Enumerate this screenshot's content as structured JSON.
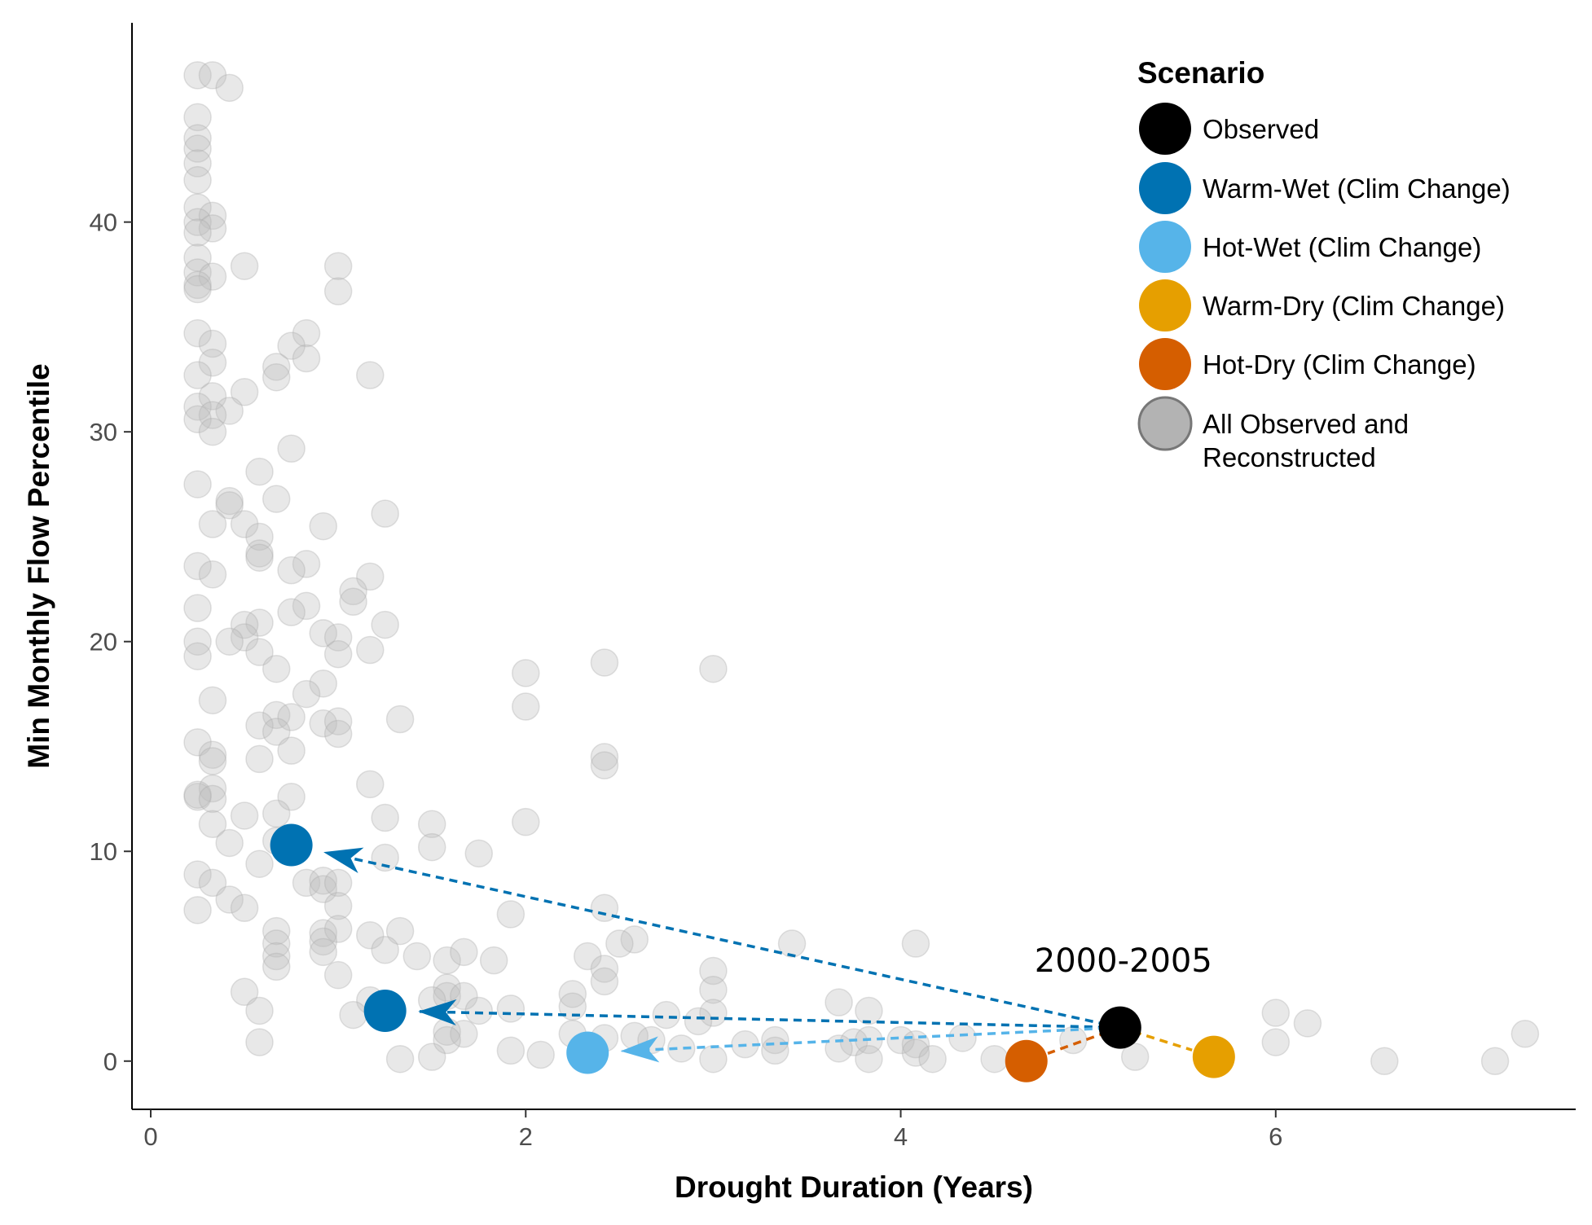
{
  "chart_data": {
    "type": "scatter",
    "xlabel": "Drought Duration (Years)",
    "ylabel": "Min Monthly Flow Percentile",
    "xlim": [
      -0.1,
      7.6
    ],
    "ylim": [
      -2.3,
      49.5
    ],
    "xticks": [
      0,
      2,
      4,
      6
    ],
    "yticks": [
      0,
      10,
      20,
      30,
      40
    ],
    "grid": false,
    "legend_position": "top-right",
    "legend_title": "Scenario",
    "colors": {
      "Observed": "#000000",
      "Warm-Wet (Clim Change)": "#0072B2",
      "Hot-Wet (Clim Change)": "#56B4E9",
      "Warm-Dry (Clim Change)": "#E69F00",
      "Hot-Dry (Clim Change)": "#D55E00",
      "All Observed and Reconstructed": "#bdbdbd"
    },
    "series": [
      {
        "name": "All Observed and Reconstructed",
        "points": [
          [
            0.25,
            47.0
          ],
          [
            0.33,
            47.0
          ],
          [
            0.42,
            46.4
          ],
          [
            0.25,
            45.0
          ],
          [
            0.25,
            44.0
          ],
          [
            0.25,
            43.5
          ],
          [
            0.25,
            42.8
          ],
          [
            0.25,
            42.0
          ],
          [
            0.25,
            40.7
          ],
          [
            0.33,
            40.3
          ],
          [
            0.25,
            40.0
          ],
          [
            0.33,
            39.7
          ],
          [
            0.25,
            39.5
          ],
          [
            0.25,
            38.3
          ],
          [
            0.5,
            37.9
          ],
          [
            0.25,
            37.6
          ],
          [
            0.33,
            37.4
          ],
          [
            0.25,
            37.0
          ],
          [
            0.25,
            36.8
          ],
          [
            1.0,
            37.9
          ],
          [
            1.0,
            36.7
          ],
          [
            0.25,
            34.7
          ],
          [
            0.33,
            34.2
          ],
          [
            0.83,
            34.7
          ],
          [
            0.75,
            34.1
          ],
          [
            0.33,
            33.3
          ],
          [
            0.83,
            33.5
          ],
          [
            0.67,
            33.1
          ],
          [
            0.67,
            32.6
          ],
          [
            0.25,
            32.7
          ],
          [
            1.17,
            32.7
          ],
          [
            0.5,
            31.9
          ],
          [
            0.33,
            31.7
          ],
          [
            0.25,
            31.2
          ],
          [
            0.42,
            31.0
          ],
          [
            0.33,
            30.8
          ],
          [
            0.25,
            30.6
          ],
          [
            0.33,
            30.0
          ],
          [
            0.75,
            29.2
          ],
          [
            0.58,
            28.1
          ],
          [
            0.25,
            27.5
          ],
          [
            0.67,
            26.8
          ],
          [
            0.42,
            26.7
          ],
          [
            0.42,
            26.5
          ],
          [
            1.25,
            26.1
          ],
          [
            0.33,
            25.6
          ],
          [
            0.5,
            25.6
          ],
          [
            0.92,
            25.5
          ],
          [
            0.58,
            25.0
          ],
          [
            0.58,
            24.2
          ],
          [
            0.58,
            24.0
          ],
          [
            0.83,
            23.7
          ],
          [
            0.25,
            23.6
          ],
          [
            0.75,
            23.4
          ],
          [
            0.33,
            23.2
          ],
          [
            1.17,
            23.1
          ],
          [
            1.08,
            22.4
          ],
          [
            1.08,
            21.9
          ],
          [
            0.83,
            21.7
          ],
          [
            0.25,
            21.6
          ],
          [
            0.75,
            21.4
          ],
          [
            0.58,
            20.9
          ],
          [
            0.5,
            20.8
          ],
          [
            1.25,
            20.8
          ],
          [
            0.92,
            20.4
          ],
          [
            0.5,
            20.2
          ],
          [
            1.0,
            20.2
          ],
          [
            0.25,
            20.0
          ],
          [
            0.42,
            20.0
          ],
          [
            0.25,
            19.3
          ],
          [
            1.0,
            19.4
          ],
          [
            1.17,
            19.6
          ],
          [
            0.58,
            19.5
          ],
          [
            0.67,
            18.7
          ],
          [
            2.0,
            18.5
          ],
          [
            2.42,
            19.0
          ],
          [
            3.0,
            18.7
          ],
          [
            0.92,
            18.0
          ],
          [
            0.83,
            17.5
          ],
          [
            0.33,
            17.2
          ],
          [
            2.0,
            16.9
          ],
          [
            0.67,
            16.5
          ],
          [
            0.75,
            16.4
          ],
          [
            1.33,
            16.3
          ],
          [
            0.58,
            16.0
          ],
          [
            0.92,
            16.1
          ],
          [
            1.0,
            16.2
          ],
          [
            0.67,
            15.7
          ],
          [
            1.0,
            15.6
          ],
          [
            0.25,
            15.2
          ],
          [
            0.75,
            14.8
          ],
          [
            0.33,
            14.6
          ],
          [
            0.33,
            14.3
          ],
          [
            0.58,
            14.4
          ],
          [
            2.42,
            14.5
          ],
          [
            2.42,
            14.1
          ],
          [
            1.17,
            13.2
          ],
          [
            0.33,
            13.0
          ],
          [
            0.25,
            12.6
          ],
          [
            0.25,
            12.7
          ],
          [
            0.33,
            12.5
          ],
          [
            0.75,
            12.6
          ],
          [
            0.5,
            11.7
          ],
          [
            0.67,
            11.8
          ],
          [
            1.25,
            11.6
          ],
          [
            0.33,
            11.3
          ],
          [
            1.5,
            11.3
          ],
          [
            2.0,
            11.4
          ],
          [
            0.42,
            10.4
          ],
          [
            0.67,
            10.5
          ],
          [
            1.5,
            10.2
          ],
          [
            1.75,
            9.9
          ],
          [
            0.58,
            9.4
          ],
          [
            1.25,
            9.7
          ],
          [
            0.25,
            8.9
          ],
          [
            0.33,
            8.5
          ],
          [
            0.83,
            8.5
          ],
          [
            0.92,
            8.6
          ],
          [
            0.92,
            8.2
          ],
          [
            1.0,
            8.5
          ],
          [
            0.42,
            7.7
          ],
          [
            0.5,
            7.3
          ],
          [
            0.25,
            7.2
          ],
          [
            1.0,
            7.4
          ],
          [
            1.92,
            7.0
          ],
          [
            2.42,
            7.3
          ],
          [
            0.67,
            6.2
          ],
          [
            0.92,
            6.1
          ],
          [
            1.0,
            6.3
          ],
          [
            1.17,
            6.0
          ],
          [
            1.33,
            6.2
          ],
          [
            0.67,
            5.6
          ],
          [
            0.92,
            5.7
          ],
          [
            1.25,
            5.3
          ],
          [
            2.58,
            5.8
          ],
          [
            2.5,
            5.6
          ],
          [
            3.42,
            5.6
          ],
          [
            4.08,
            5.6
          ],
          [
            0.67,
            5.0
          ],
          [
            0.92,
            5.2
          ],
          [
            1.42,
            5.0
          ],
          [
            1.58,
            4.8
          ],
          [
            1.67,
            5.2
          ],
          [
            1.83,
            4.8
          ],
          [
            2.33,
            5.0
          ],
          [
            0.67,
            4.5
          ],
          [
            1.0,
            4.1
          ],
          [
            2.42,
            4.4
          ],
          [
            2.42,
            3.8
          ],
          [
            3.0,
            4.3
          ],
          [
            0.5,
            3.3
          ],
          [
            1.58,
            3.5
          ],
          [
            1.58,
            3.1
          ],
          [
            1.67,
            3.1
          ],
          [
            2.25,
            3.2
          ],
          [
            3.0,
            3.4
          ],
          [
            3.67,
            2.8
          ],
          [
            1.17,
            2.9
          ],
          [
            1.5,
            2.9
          ],
          [
            1.75,
            2.4
          ],
          [
            1.92,
            2.5
          ],
          [
            2.25,
            2.6
          ],
          [
            2.75,
            2.2
          ],
          [
            3.0,
            2.3
          ],
          [
            3.83,
            2.4
          ],
          [
            0.58,
            2.4
          ],
          [
            1.08,
            2.2
          ],
          [
            2.92,
            1.9
          ],
          [
            6.0,
            2.3
          ],
          [
            6.17,
            1.8
          ],
          [
            0.58,
            0.9
          ],
          [
            1.58,
            1.4
          ],
          [
            1.67,
            1.3
          ],
          [
            1.58,
            1.0
          ],
          [
            2.25,
            1.3
          ],
          [
            2.42,
            1.1
          ],
          [
            2.58,
            1.2
          ],
          [
            2.67,
            1.0
          ],
          [
            3.17,
            0.8
          ],
          [
            3.33,
            1.0
          ],
          [
            3.75,
            0.9
          ],
          [
            3.83,
            1.0
          ],
          [
            4.0,
            1.0
          ],
          [
            4.08,
            0.8
          ],
          [
            4.33,
            1.1
          ],
          [
            4.08,
            0.4
          ],
          [
            4.17,
            0.1
          ],
          [
            1.33,
            0.1
          ],
          [
            1.5,
            0.2
          ],
          [
            1.92,
            0.5
          ],
          [
            2.08,
            0.3
          ],
          [
            2.83,
            0.6
          ],
          [
            3.0,
            0.1
          ],
          [
            3.33,
            0.5
          ],
          [
            3.67,
            0.6
          ],
          [
            3.83,
            0.1
          ],
          [
            4.92,
            1.0
          ],
          [
            5.25,
            0.2
          ],
          [
            6.0,
            0.9
          ],
          [
            6.58,
            0.0
          ],
          [
            7.17,
            0.0
          ],
          [
            7.33,
            1.3
          ],
          [
            4.5,
            0.1
          ]
        ]
      },
      {
        "name": "Observed",
        "points": [
          [
            5.17,
            1.6
          ]
        ]
      },
      {
        "name": "Warm-Wet (Clim Change)",
        "points": [
          [
            0.75,
            10.3
          ],
          [
            1.25,
            2.4
          ]
        ]
      },
      {
        "name": "Hot-Wet (Clim Change)",
        "points": [
          [
            2.33,
            0.4
          ]
        ]
      },
      {
        "name": "Warm-Dry (Clim Change)",
        "points": [
          [
            5.67,
            0.2
          ]
        ]
      },
      {
        "name": "Hot-Dry (Clim Change)",
        "points": [
          [
            4.67,
            0.0
          ]
        ]
      }
    ],
    "arrows": [
      {
        "from": [
          5.17,
          1.6
        ],
        "to": [
          0.75,
          10.3
        ],
        "series": "Warm-Wet (Clim Change)"
      },
      {
        "from": [
          5.17,
          1.6
        ],
        "to": [
          1.25,
          2.4
        ],
        "series": "Warm-Wet (Clim Change)"
      },
      {
        "from": [
          5.17,
          1.6
        ],
        "to": [
          2.33,
          0.4
        ],
        "series": "Hot-Wet (Clim Change)"
      },
      {
        "from": [
          5.17,
          1.6
        ],
        "to": [
          5.67,
          0.2
        ],
        "series": "Warm-Dry (Clim Change)"
      },
      {
        "from": [
          5.17,
          1.6
        ],
        "to": [
          4.67,
          0.0
        ],
        "series": "Hot-Dry (Clim Change)"
      }
    ],
    "annotations": [
      {
        "text": "2000-2005",
        "x": 5.17,
        "y": 4.8
      }
    ],
    "legend": [
      {
        "label": "Observed",
        "key": "Observed"
      },
      {
        "label": "Warm-Wet (Clim Change)",
        "key": "Warm-Wet (Clim Change)"
      },
      {
        "label": "Hot-Wet (Clim Change)",
        "key": "Hot-Wet (Clim Change)"
      },
      {
        "label": "Warm-Dry (Clim Change)",
        "key": "Warm-Dry (Clim Change)"
      },
      {
        "label": "Hot-Dry (Clim Change)",
        "key": "Hot-Dry (Clim Change)"
      },
      {
        "label": [
          "All Observed and",
          "Reconstructed"
        ],
        "key": "All Observed and Reconstructed"
      }
    ]
  }
}
